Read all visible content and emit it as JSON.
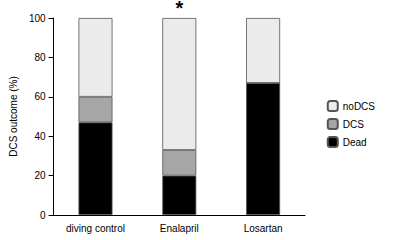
{
  "chart_data": {
    "type": "bar",
    "stacked": true,
    "y_label": "DCS outcome (%)",
    "categories": [
      "diving control",
      "Enalapril",
      "Losartan"
    ],
    "series": [
      {
        "name": "Dead",
        "color": "#000000",
        "values": [
          47,
          20,
          67
        ]
      },
      {
        "name": "DCS",
        "color": "#a6a6a6",
        "values": [
          13,
          13,
          0
        ]
      },
      {
        "name": "noDCS",
        "color": "#ebebeb",
        "values": [
          40,
          67,
          33
        ]
      }
    ],
    "annotations": [
      {
        "text": "*",
        "category": "Enalapril"
      }
    ],
    "ylim": [
      0,
      100
    ],
    "yticks": [
      0,
      20,
      40,
      60,
      80,
      100
    ],
    "grid": false,
    "legend": "right"
  }
}
